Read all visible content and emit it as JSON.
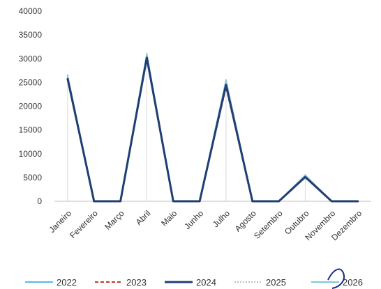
{
  "chart_data": {
    "type": "line",
    "title": "",
    "xlabel": "",
    "ylabel": "",
    "ylim": [
      0,
      40000
    ],
    "yticks": [
      0,
      5000,
      10000,
      15000,
      20000,
      25000,
      30000,
      35000,
      40000
    ],
    "grid": false,
    "legend_position": "bottom",
    "categories": [
      "Janeiro",
      "Fevereiro",
      "Março",
      "Abril",
      "Maio",
      "Junho",
      "Julho",
      "Agosto",
      "Setembro",
      "Outubro",
      "Novembro",
      "Dezembro"
    ],
    "series": [
      {
        "name": "2022",
        "values": [
          26000,
          0,
          0,
          30500,
          0,
          0,
          25000,
          0,
          0,
          5200,
          0,
          0
        ]
      },
      {
        "name": "2023",
        "values": [
          25500,
          0,
          0,
          30000,
          0,
          0,
          24000,
          0,
          0,
          5000,
          0,
          0
        ]
      },
      {
        "name": "2024",
        "values": [
          25800,
          0,
          0,
          30200,
          0,
          0,
          24500,
          0,
          0,
          5100,
          0,
          0
        ]
      },
      {
        "name": "2025",
        "values": [
          26000,
          0,
          0,
          30500,
          0,
          0,
          25000,
          0,
          0,
          5200,
          0,
          0
        ]
      },
      {
        "name": "2026",
        "values": [
          26500,
          0,
          0,
          31000,
          0,
          0,
          25500,
          0,
          0,
          5500,
          0,
          0
        ]
      }
    ],
    "series_colors": [
      "#5bb8e8",
      "#c0392b",
      "#1f3f73",
      "#bdbdbd",
      "#7ec8d8"
    ],
    "series_styles": [
      "solid",
      "dashed",
      "solid-thick",
      "dotted",
      "solid"
    ]
  }
}
